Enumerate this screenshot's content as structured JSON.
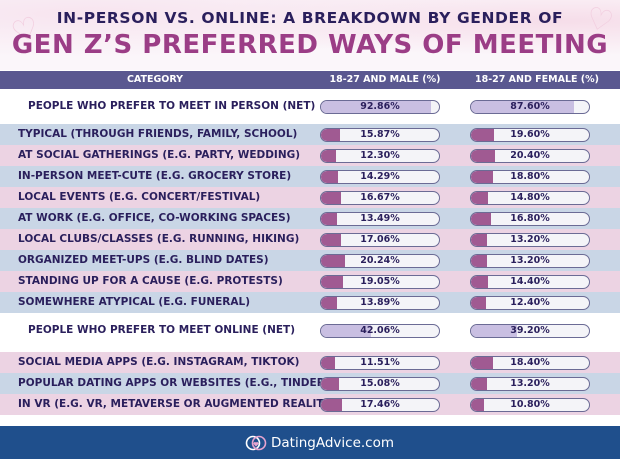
{
  "title": {
    "line1": "IN-PERSON VS. ONLINE: A BREAKDOWN BY GENDER OF",
    "line2": "GEN Z’S PREFERRED WAYS OF MEETING"
  },
  "header": {
    "category": "CATEGORY",
    "male": "18-27 AND MALE (%)",
    "female": "18-27 AND FEMALE (%)"
  },
  "footer": {
    "logo_text": "DatingAdvice.com"
  },
  "colors": {
    "title_dark": "#2a1f5c",
    "title_accent": "#9b3d86",
    "header_bg": "#5a5890",
    "row_blue": "#c9d6e6",
    "row_pink": "#ecd3e3",
    "bar_fill": "#a05a92",
    "net_bar_fill": "#c9bfe2",
    "footer_bg": "#1f4f8c"
  },
  "chart_data": {
    "type": "table",
    "columns": [
      "CATEGORY",
      "18-27 AND MALE (%)",
      "18-27 AND FEMALE (%)"
    ],
    "unit": "%",
    "rows": [
      {
        "label": "PEOPLE WHO PREFER TO MEET IN PERSON (NET)",
        "net": true,
        "male": 92.86,
        "female": 87.6,
        "male_text": "92.86%",
        "female_text": "87.60%"
      },
      {
        "label": "TYPICAL (THROUGH FRIENDS, FAMILY, SCHOOL)",
        "net": false,
        "male": 15.87,
        "female": 19.6,
        "male_text": "15.87%",
        "female_text": "19.60%"
      },
      {
        "label": "AT SOCIAL GATHERINGS (E.G. PARTY, WEDDING)",
        "net": false,
        "male": 12.3,
        "female": 20.4,
        "male_text": "12.30%",
        "female_text": "20.40%"
      },
      {
        "label": "IN-PERSON MEET-CUTE (E.G. GROCERY STORE)",
        "net": false,
        "male": 14.29,
        "female": 18.8,
        "male_text": "14.29%",
        "female_text": "18.80%"
      },
      {
        "label": "LOCAL EVENTS (E.G. CONCERT/FESTIVAL)",
        "net": false,
        "male": 16.67,
        "female": 14.8,
        "male_text": "16.67%",
        "female_text": "14.80%"
      },
      {
        "label": "AT WORK (E.G. OFFICE, CO-WORKING SPACES)",
        "net": false,
        "male": 13.49,
        "female": 16.8,
        "male_text": "13.49%",
        "female_text": "16.80%"
      },
      {
        "label": "LOCAL CLUBS/CLASSES (E.G. RUNNING, HIKING)",
        "net": false,
        "male": 17.06,
        "female": 13.2,
        "male_text": "17.06%",
        "female_text": "13.20%"
      },
      {
        "label": "ORGANIZED MEET-UPS (E.G. BLIND DATES)",
        "net": false,
        "male": 20.24,
        "female": 13.2,
        "male_text": "20.24%",
        "female_text": "13.20%"
      },
      {
        "label": "STANDING UP FOR A CAUSE (E.G. PROTESTS)",
        "net": false,
        "male": 19.05,
        "female": 14.4,
        "male_text": "19.05%",
        "female_text": "14.40%"
      },
      {
        "label": "SOMEWHERE ATYPICAL (E.G. FUNERAL)",
        "net": false,
        "male": 13.89,
        "female": 12.4,
        "male_text": "13.89%",
        "female_text": "12.40%"
      },
      {
        "label": "PEOPLE WHO PREFER TO MEET ONLINE (NET)",
        "net": true,
        "male": 42.06,
        "female": 39.2,
        "male_text": "42.06%",
        "female_text": "39.20%"
      },
      {
        "label": "SOCIAL MEDIA APPS (E.G. INSTAGRAM, TIKTOK)",
        "net": false,
        "male": 11.51,
        "female": 18.4,
        "male_text": "11.51%",
        "female_text": "18.40%"
      },
      {
        "label": "POPULAR DATING APPS OR WEBSITES (E.G., TINDER)",
        "net": false,
        "male": 15.08,
        "female": 13.2,
        "male_text": "15.08%",
        "female_text": "13.20%"
      },
      {
        "label": "IN VR (E.G. VR, METAVERSE OR AUGMENTED REALITY)",
        "net": false,
        "male": 17.46,
        "female": 10.8,
        "male_text": "17.46%",
        "female_text": "10.80%"
      }
    ]
  }
}
